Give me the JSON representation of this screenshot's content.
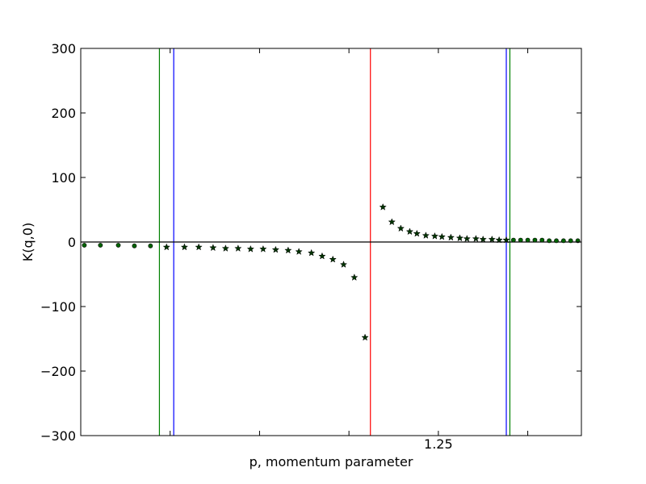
{
  "chart_data": {
    "type": "scatter",
    "title": "",
    "xlabel": "p, momentum parameter",
    "ylabel": "K(q,0)",
    "xlim": [
      0,
      1.4
    ],
    "ylim": [
      -300,
      300
    ],
    "yticks": [
      -300,
      -200,
      -100,
      0,
      100,
      200,
      300
    ],
    "xtick_labels": [
      "1.25"
    ],
    "grid": false,
    "horizontal_lines": [
      {
        "y": 0,
        "color": "#000000"
      }
    ],
    "vertical_lines": [
      {
        "x": 0.22,
        "color": "#008000"
      },
      {
        "x": 0.26,
        "color": "#0000ff"
      },
      {
        "x": 0.81,
        "color": "#ff0000"
      },
      {
        "x": 1.19,
        "color": "#0000ff"
      },
      {
        "x": 1.2,
        "color": "#008000"
      }
    ],
    "series": [
      {
        "marker": "circle",
        "color": "#006400",
        "points": [
          [
            0.01,
            -5
          ],
          [
            0.055,
            -5
          ],
          [
            0.105,
            -5
          ],
          [
            0.15,
            -6
          ],
          [
            0.195,
            -6
          ],
          [
            1.21,
            3
          ],
          [
            1.23,
            3
          ],
          [
            1.25,
            3
          ],
          [
            1.27,
            3
          ],
          [
            1.29,
            3
          ],
          [
            1.31,
            2
          ],
          [
            1.33,
            2
          ],
          [
            1.35,
            2
          ],
          [
            1.37,
            2
          ],
          [
            1.39,
            2
          ]
        ]
      },
      {
        "marker": "star",
        "color": "#003300",
        "points": [
          [
            0.24,
            -8
          ],
          [
            0.29,
            -8
          ],
          [
            0.33,
            -8
          ],
          [
            0.37,
            -9
          ],
          [
            0.405,
            -10
          ],
          [
            0.44,
            -10
          ],
          [
            0.475,
            -11
          ],
          [
            0.51,
            -11
          ],
          [
            0.545,
            -12
          ],
          [
            0.58,
            -13
          ],
          [
            0.61,
            -15
          ],
          [
            0.645,
            -17
          ],
          [
            0.675,
            -22
          ],
          [
            0.705,
            -27
          ],
          [
            0.735,
            -35
          ],
          [
            0.765,
            -55
          ],
          [
            0.795,
            -148
          ],
          [
            0.845,
            54
          ],
          [
            0.87,
            31
          ],
          [
            0.895,
            21
          ],
          [
            0.92,
            16
          ],
          [
            0.94,
            13
          ],
          [
            0.965,
            10
          ],
          [
            0.99,
            9
          ],
          [
            1.01,
            8
          ],
          [
            1.035,
            7
          ],
          [
            1.06,
            6
          ],
          [
            1.08,
            5
          ],
          [
            1.105,
            5
          ],
          [
            1.125,
            4
          ],
          [
            1.15,
            4
          ],
          [
            1.17,
            3
          ],
          [
            1.19,
            3
          ]
        ]
      }
    ]
  }
}
